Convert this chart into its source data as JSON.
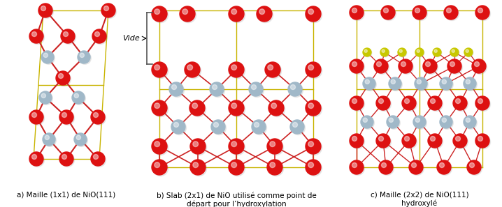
{
  "fig_width": 7.18,
  "fig_height": 2.97,
  "dpi": 100,
  "background": "#ffffff",
  "captions": [
    "a) Maille (1x1) de NiO(111)",
    "b) Slab (2x1) de NiO utilisé comme point de\ndépart pour l’hydroxylation",
    "c) Maille (2x2) de NiO(111)\nhydroxylé"
  ],
  "vide_label": "Vide",
  "cell_color": "#c8b400",
  "red_color": "#dd1111",
  "grey_color": "#a0b8c8",
  "yellow_color": "#c8c800",
  "bond_red": "#cc2222",
  "bond_grey": "#909090"
}
